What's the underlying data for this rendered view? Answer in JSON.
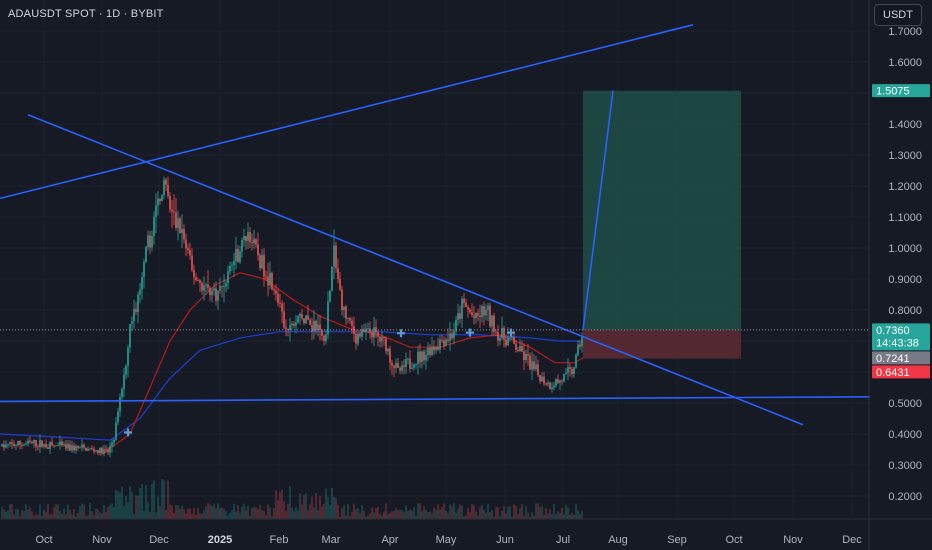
{
  "symbol_title": "ADAUSDT SPOT · 1D · BYBIT",
  "currency_button": "USDT",
  "colors": {
    "background": "#161a25",
    "grid": "#1f2330",
    "up": "#26a69a",
    "down": "#ef5350",
    "trendline": "#2962ff",
    "ma_red": "#b71c1c",
    "ma_blue": "#1e3ed6",
    "target_zone": "#1e4a45",
    "stop_zone": "#5a2a33"
  },
  "chart_data": {
    "type": "candlestick",
    "x_axis": {
      "ticks": [
        "Oct",
        "Nov",
        "Dec",
        "2025",
        "Feb",
        "Mar",
        "Apr",
        "May",
        "Jun",
        "Jul",
        "Aug",
        "Sep",
        "Oct",
        "Nov",
        "Dec"
      ],
      "bold_tick": "2025"
    },
    "y_axis": {
      "ticks": [
        "1.7000",
        "1.6000",
        "1.5000",
        "1.4000",
        "1.3000",
        "1.2000",
        "1.1000",
        "1.0000",
        "0.9000",
        "0.8000",
        "0.7000",
        "0.6000",
        "0.5000",
        "0.4000",
        "0.3000",
        "0.2000"
      ],
      "range": [
        0.13,
        1.73
      ]
    },
    "price_tags": [
      {
        "label": "1.5075",
        "value": 1.5075,
        "color": "#26a69a"
      },
      {
        "label": "0.7360",
        "sublabel": "14:43:38",
        "value": 0.736,
        "color": "#26a69a"
      },
      {
        "label": "0.7241",
        "value": 0.7241,
        "color": "#787b86"
      },
      {
        "label": "0.6431",
        "value": 0.6431,
        "color": "#f23645"
      }
    ],
    "anchor_points": [
      {
        "x": 0,
        "p": 0.36
      },
      {
        "x": 30,
        "p": 0.37
      },
      {
        "x": 60,
        "p": 0.36
      },
      {
        "x": 90,
        "p": 0.35
      },
      {
        "x": 108,
        "p": 0.34
      },
      {
        "x": 115,
        "p": 0.4
      },
      {
        "x": 122,
        "p": 0.55
      },
      {
        "x": 130,
        "p": 0.75
      },
      {
        "x": 140,
        "p": 0.85
      },
      {
        "x": 148,
        "p": 1.0
      },
      {
        "x": 155,
        "p": 1.1
      },
      {
        "x": 163,
        "p": 1.22
      },
      {
        "x": 172,
        "p": 1.1
      },
      {
        "x": 182,
        "p": 1.05
      },
      {
        "x": 192,
        "p": 0.92
      },
      {
        "x": 205,
        "p": 0.87
      },
      {
        "x": 218,
        "p": 0.85
      },
      {
        "x": 232,
        "p": 0.95
      },
      {
        "x": 248,
        "p": 1.05
      },
      {
        "x": 262,
        "p": 0.95
      },
      {
        "x": 275,
        "p": 0.88
      },
      {
        "x": 285,
        "p": 0.72
      },
      {
        "x": 300,
        "p": 0.78
      },
      {
        "x": 315,
        "p": 0.75
      },
      {
        "x": 325,
        "p": 0.7
      },
      {
        "x": 333,
        "p": 1.0
      },
      {
        "x": 343,
        "p": 0.8
      },
      {
        "x": 355,
        "p": 0.72
      },
      {
        "x": 370,
        "p": 0.73
      },
      {
        "x": 385,
        "p": 0.69
      },
      {
        "x": 398,
        "p": 0.6
      },
      {
        "x": 410,
        "p": 0.63
      },
      {
        "x": 425,
        "p": 0.66
      },
      {
        "x": 440,
        "p": 0.7
      },
      {
        "x": 452,
        "p": 0.72
      },
      {
        "x": 463,
        "p": 0.82
      },
      {
        "x": 475,
        "p": 0.77
      },
      {
        "x": 485,
        "p": 0.8
      },
      {
        "x": 498,
        "p": 0.72
      },
      {
        "x": 510,
        "p": 0.7
      },
      {
        "x": 522,
        "p": 0.66
      },
      {
        "x": 535,
        "p": 0.6
      },
      {
        "x": 548,
        "p": 0.56
      },
      {
        "x": 560,
        "p": 0.57
      },
      {
        "x": 572,
        "p": 0.6
      },
      {
        "x": 578,
        "p": 0.66
      },
      {
        "x": 583,
        "p": 0.736
      }
    ],
    "ma_red_points": [
      {
        "x": 100,
        "p": 0.33
      },
      {
        "x": 130,
        "p": 0.4
      },
      {
        "x": 150,
        "p": 0.55
      },
      {
        "x": 170,
        "p": 0.7
      },
      {
        "x": 190,
        "p": 0.8
      },
      {
        "x": 215,
        "p": 0.88
      },
      {
        "x": 240,
        "p": 0.92
      },
      {
        "x": 265,
        "p": 0.9
      },
      {
        "x": 290,
        "p": 0.84
      },
      {
        "x": 320,
        "p": 0.78
      },
      {
        "x": 350,
        "p": 0.74
      },
      {
        "x": 380,
        "p": 0.72
      },
      {
        "x": 410,
        "p": 0.68
      },
      {
        "x": 440,
        "p": 0.68
      },
      {
        "x": 470,
        "p": 0.71
      },
      {
        "x": 500,
        "p": 0.72
      },
      {
        "x": 530,
        "p": 0.68
      },
      {
        "x": 555,
        "p": 0.63
      },
      {
        "x": 575,
        "p": 0.63
      },
      {
        "x": 585,
        "p": 0.65
      }
    ],
    "ma_blue_points": [
      {
        "x": 0,
        "p": 0.4
      },
      {
        "x": 60,
        "p": 0.39
      },
      {
        "x": 110,
        "p": 0.38
      },
      {
        "x": 140,
        "p": 0.45
      },
      {
        "x": 170,
        "p": 0.58
      },
      {
        "x": 200,
        "p": 0.67
      },
      {
        "x": 240,
        "p": 0.71
      },
      {
        "x": 280,
        "p": 0.73
      },
      {
        "x": 330,
        "p": 0.73
      },
      {
        "x": 380,
        "p": 0.73
      },
      {
        "x": 430,
        "p": 0.72
      },
      {
        "x": 480,
        "p": 0.72
      },
      {
        "x": 530,
        "p": 0.71
      },
      {
        "x": 560,
        "p": 0.7
      },
      {
        "x": 585,
        "p": 0.7
      }
    ],
    "drawings": {
      "upper_rising_line": [
        {
          "x": 0,
          "p": 1.16
        },
        {
          "x": 693,
          "p": 1.72
        }
      ],
      "descending_trendline": [
        {
          "x": 28,
          "p": 1.43
        },
        {
          "x": 803,
          "p": 0.43
        }
      ],
      "horizontal_support": [
        {
          "x": 0,
          "p": 0.505
        },
        {
          "x": 870,
          "p": 0.52
        }
      ],
      "projection_line": [
        {
          "x": 583,
          "p": 0.736
        },
        {
          "x": 613,
          "p": 1.5075
        }
      ],
      "position_box": {
        "x_start": 583,
        "x_end": 741,
        "entry": 0.736,
        "target": 1.5075,
        "stop": 0.6431
      }
    },
    "markers": [
      {
        "x": 128,
        "p": 0.405
      },
      {
        "x": 401,
        "p": 0.725
      },
      {
        "x": 470,
        "p": 0.727
      },
      {
        "x": 511,
        "p": 0.727
      }
    ]
  }
}
